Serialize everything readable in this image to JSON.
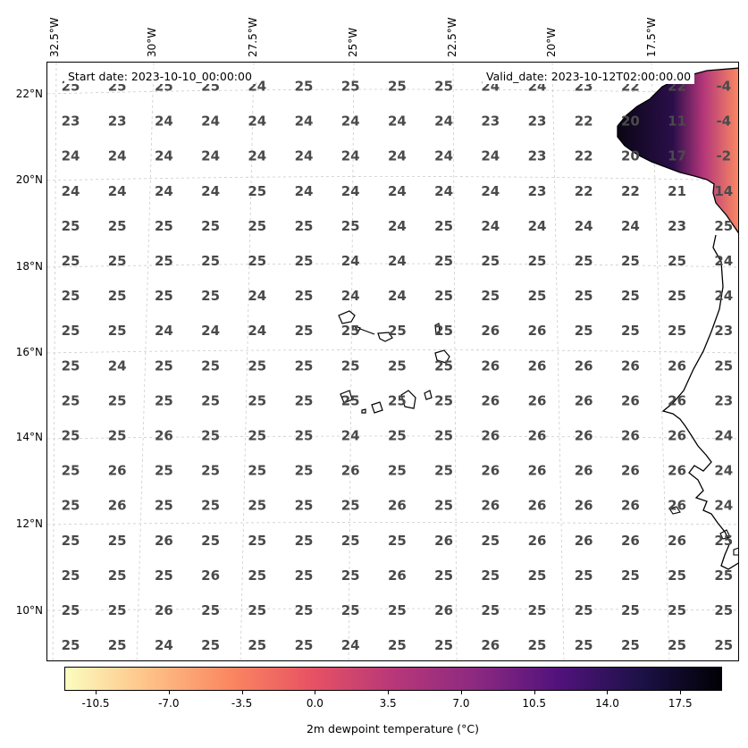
{
  "header": {
    "start_date": "Start date: 2023-10-10_00:00:00",
    "valid_date": "Valid_date: 2023-10-12T02:00:00.00"
  },
  "axes": {
    "lon_labels": [
      "32.5°W",
      "30°W",
      "27.5°W",
      "25°W",
      "22.5°W",
      "20°W",
      "17.5°W"
    ],
    "lat_labels": [
      "22°N",
      "20°N",
      "18°N",
      "16°N",
      "14°N",
      "12°N",
      "10°N"
    ]
  },
  "colorbar": {
    "title": "2m dewpoint temperature (°C)",
    "ticks": [
      "-10.5",
      "-7.0",
      "-3.5",
      "0.0",
      "3.5",
      "7.0",
      "10.5",
      "14.0",
      "17.5"
    ],
    "range": [
      -12,
      19.5
    ],
    "colormap": "magma_r",
    "colors": [
      "#fcfdbf",
      "#fec287",
      "#fb8761",
      "#e75263",
      "#b73779",
      "#8c2981",
      "#51127c",
      "#1d1147",
      "#000004"
    ]
  },
  "grid_values": [
    [
      "25",
      "25",
      "25",
      "25",
      "24",
      "25",
      "25",
      "25",
      "25",
      "24",
      "24",
      "23",
      "22",
      "22",
      "-4"
    ],
    [
      "23",
      "23",
      "24",
      "24",
      "24",
      "24",
      "24",
      "24",
      "24",
      "23",
      "23",
      "22",
      "20",
      "11",
      "-4"
    ],
    [
      "24",
      "24",
      "24",
      "24",
      "24",
      "24",
      "24",
      "24",
      "24",
      "24",
      "23",
      "22",
      "20",
      "17",
      "-2"
    ],
    [
      "24",
      "24",
      "24",
      "24",
      "25",
      "24",
      "24",
      "24",
      "24",
      "24",
      "23",
      "22",
      "22",
      "21",
      "14"
    ],
    [
      "25",
      "25",
      "25",
      "25",
      "25",
      "25",
      "25",
      "24",
      "25",
      "24",
      "24",
      "24",
      "24",
      "23",
      "25"
    ],
    [
      "25",
      "25",
      "25",
      "25",
      "25",
      "25",
      "24",
      "24",
      "25",
      "25",
      "25",
      "25",
      "25",
      "25",
      "24"
    ],
    [
      "25",
      "25",
      "25",
      "25",
      "24",
      "25",
      "24",
      "24",
      "25",
      "25",
      "25",
      "25",
      "25",
      "25",
      "24"
    ],
    [
      "25",
      "25",
      "24",
      "24",
      "24",
      "25",
      "25",
      "25",
      "25",
      "26",
      "26",
      "25",
      "25",
      "25",
      "23"
    ],
    [
      "25",
      "24",
      "25",
      "25",
      "25",
      "25",
      "25",
      "25",
      "25",
      "26",
      "26",
      "26",
      "26",
      "26",
      "25"
    ],
    [
      "25",
      "25",
      "25",
      "25",
      "25",
      "25",
      "25",
      "25",
      "25",
      "26",
      "26",
      "26",
      "26",
      "26",
      "23"
    ],
    [
      "25",
      "25",
      "26",
      "25",
      "25",
      "25",
      "24",
      "25",
      "25",
      "26",
      "26",
      "26",
      "26",
      "26",
      "24"
    ],
    [
      "25",
      "26",
      "25",
      "25",
      "25",
      "25",
      "26",
      "25",
      "25",
      "26",
      "26",
      "26",
      "26",
      "26",
      "24"
    ],
    [
      "25",
      "26",
      "25",
      "25",
      "25",
      "25",
      "25",
      "26",
      "25",
      "26",
      "26",
      "26",
      "26",
      "26",
      "24"
    ],
    [
      "25",
      "25",
      "26",
      "25",
      "25",
      "25",
      "25",
      "25",
      "26",
      "25",
      "26",
      "26",
      "26",
      "26",
      "25"
    ],
    [
      "25",
      "25",
      "25",
      "26",
      "25",
      "25",
      "25",
      "26",
      "25",
      "25",
      "25",
      "25",
      "25",
      "25",
      "25"
    ],
    [
      "25",
      "25",
      "26",
      "25",
      "25",
      "25",
      "25",
      "25",
      "26",
      "25",
      "25",
      "25",
      "25",
      "25",
      "25"
    ],
    [
      "25",
      "25",
      "24",
      "25",
      "25",
      "25",
      "24",
      "25",
      "25",
      "26",
      "25",
      "25",
      "25",
      "25",
      "25"
    ]
  ]
}
